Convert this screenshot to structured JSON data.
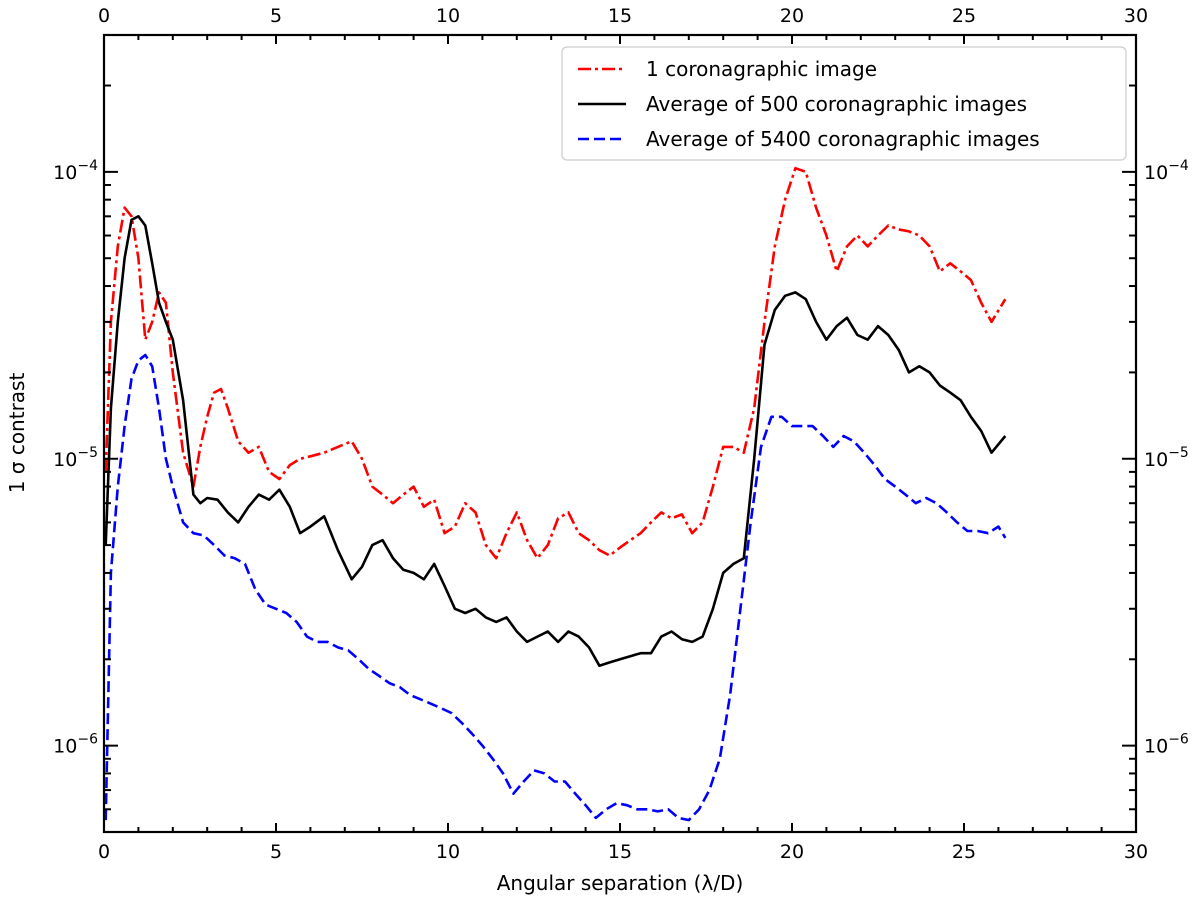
{
  "chart_data": {
    "type": "line",
    "title": "",
    "xlabel": "Angular separation (λ/D)",
    "ylabel": "1 σ contrast",
    "xlim": [
      0,
      30
    ],
    "ylim": [
      5e-07,
      0.0003
    ],
    "yscale": "log",
    "grid": false,
    "legend_position": "top-right",
    "x_ticks": [
      0,
      5,
      10,
      15,
      20,
      25,
      30
    ],
    "x_tick_labels": [
      "0",
      "5",
      "10",
      "15",
      "20",
      "25",
      "30"
    ],
    "y_ticks": [
      1e-06,
      1e-05,
      0.0001
    ],
    "y_tick_labels": [
      {
        "base": "10",
        "exp": "−6"
      },
      {
        "base": "10",
        "exp": "−5"
      },
      {
        "base": "10",
        "exp": "−4"
      }
    ],
    "series": [
      {
        "name": "1 coronagraphic image",
        "color": "#ff0000",
        "dash": "dashdot",
        "x": [
          0.05,
          0.2,
          0.4,
          0.6,
          0.8,
          1.0,
          1.2,
          1.4,
          1.6,
          1.8,
          2.0,
          2.3,
          2.6,
          2.8,
          3.0,
          3.2,
          3.4,
          3.6,
          3.9,
          4.2,
          4.5,
          4.8,
          5.1,
          5.4,
          5.7,
          6.0,
          6.4,
          6.8,
          7.2,
          7.5,
          7.8,
          8.1,
          8.4,
          8.7,
          9.0,
          9.3,
          9.6,
          9.9,
          10.2,
          10.5,
          10.8,
          11.1,
          11.4,
          11.7,
          12.0,
          12.3,
          12.6,
          12.9,
          13.2,
          13.5,
          13.8,
          14.1,
          14.4,
          14.7,
          15.0,
          15.3,
          15.6,
          15.9,
          16.2,
          16.5,
          16.8,
          17.1,
          17.4,
          17.7,
          18.0,
          18.3,
          18.6,
          18.9,
          19.2,
          19.5,
          19.8,
          20.1,
          20.4,
          20.7,
          21.0,
          21.3,
          21.6,
          21.9,
          22.2,
          22.5,
          22.8,
          23.1,
          23.4,
          23.7,
          24.0,
          24.3,
          24.6,
          24.9,
          25.2,
          25.5,
          25.8,
          26.2
        ],
        "y": [
          9e-06,
          3e-05,
          5.5e-05,
          7.5e-05,
          7e-05,
          5e-05,
          2.6e-05,
          3e-05,
          3.8e-05,
          3.5e-05,
          2e-05,
          1.05e-05,
          8e-06,
          1.1e-05,
          1.4e-05,
          1.7e-05,
          1.75e-05,
          1.5e-05,
          1.15e-05,
          1.05e-05,
          1.1e-05,
          9e-06,
          8.5e-06,
          9.5e-06,
          1e-05,
          1.02e-05,
          1.05e-05,
          1.1e-05,
          1.15e-05,
          1e-05,
          8e-06,
          7.5e-06,
          7e-06,
          7.5e-06,
          8e-06,
          6.8e-06,
          7.2e-06,
          5.5e-06,
          5.8e-06,
          7e-06,
          6.5e-06,
          5e-06,
          4.5e-06,
          5.5e-06,
          6.5e-06,
          5.2e-06,
          4.5e-06,
          5e-06,
          6.2e-06,
          6.5e-06,
          5.5e-06,
          5.2e-06,
          4.8e-06,
          4.6e-06,
          4.9e-06,
          5.2e-06,
          5.5e-06,
          6e-06,
          6.5e-06,
          6.2e-06,
          6.4e-06,
          5.5e-06,
          6e-06,
          8e-06,
          1.1e-05,
          1.1e-05,
          1.05e-05,
          1.5e-05,
          3e-05,
          5.5e-05,
          8e-05,
          0.000103,
          0.0001,
          7.5e-05,
          6e-05,
          4.5e-05,
          5.5e-05,
          6e-05,
          5.5e-05,
          6e-05,
          6.5e-05,
          6.3e-05,
          6.2e-05,
          6e-05,
          5.5e-05,
          4.5e-05,
          4.8e-05,
          4.5e-05,
          4.2e-05,
          3.5e-05,
          3e-05,
          3.6e-05
        ]
      },
      {
        "name": "Average of 500 coronagraphic images",
        "color": "#000000",
        "dash": "solid",
        "x": [
          0.05,
          0.2,
          0.4,
          0.6,
          0.8,
          1.0,
          1.2,
          1.4,
          1.6,
          1.8,
          2.0,
          2.3,
          2.6,
          2.8,
          3.0,
          3.3,
          3.6,
          3.9,
          4.2,
          4.5,
          4.8,
          5.1,
          5.4,
          5.7,
          6.0,
          6.4,
          6.8,
          7.2,
          7.5,
          7.8,
          8.1,
          8.4,
          8.7,
          9.0,
          9.3,
          9.6,
          9.9,
          10.2,
          10.5,
          10.8,
          11.1,
          11.4,
          11.7,
          12.0,
          12.3,
          12.6,
          12.9,
          13.2,
          13.5,
          13.8,
          14.1,
          14.4,
          14.7,
          15.0,
          15.3,
          15.6,
          15.9,
          16.2,
          16.5,
          16.8,
          17.1,
          17.4,
          17.7,
          18.0,
          18.3,
          18.6,
          18.9,
          19.2,
          19.5,
          19.8,
          20.1,
          20.4,
          20.7,
          21.0,
          21.3,
          21.6,
          21.9,
          22.2,
          22.5,
          22.8,
          23.1,
          23.4,
          23.7,
          24.0,
          24.3,
          24.6,
          24.9,
          25.2,
          25.5,
          25.8,
          26.2
        ],
        "y": [
          5e-06,
          1.5e-05,
          3e-05,
          5e-05,
          6.8e-05,
          7e-05,
          6.5e-05,
          4.8e-05,
          3.5e-05,
          3e-05,
          2.6e-05,
          1.6e-05,
          7.5e-06,
          7e-06,
          7.3e-06,
          7.2e-06,
          6.5e-06,
          6e-06,
          6.8e-06,
          7.5e-06,
          7.2e-06,
          7.8e-06,
          6.8e-06,
          5.5e-06,
          5.8e-06,
          6.3e-06,
          4.8e-06,
          3.8e-06,
          4.2e-06,
          5e-06,
          5.2e-06,
          4.5e-06,
          4.1e-06,
          4e-06,
          3.8e-06,
          4.3e-06,
          3.6e-06,
          3e-06,
          2.9e-06,
          3e-06,
          2.8e-06,
          2.7e-06,
          2.8e-06,
          2.5e-06,
          2.3e-06,
          2.4e-06,
          2.5e-06,
          2.3e-06,
          2.5e-06,
          2.4e-06,
          2.2e-06,
          1.9e-06,
          1.95e-06,
          2e-06,
          2.05e-06,
          2.1e-06,
          2.1e-06,
          2.4e-06,
          2.5e-06,
          2.35e-06,
          2.3e-06,
          2.4e-06,
          3e-06,
          4e-06,
          4.3e-06,
          4.5e-06,
          1e-05,
          2.5e-05,
          3.3e-05,
          3.7e-05,
          3.8e-05,
          3.6e-05,
          3e-05,
          2.6e-05,
          2.9e-05,
          3.1e-05,
          2.7e-05,
          2.6e-05,
          2.9e-05,
          2.7e-05,
          2.4e-05,
          2e-05,
          2.1e-05,
          2e-05,
          1.8e-05,
          1.7e-05,
          1.6e-05,
          1.4e-05,
          1.25e-05,
          1.05e-05,
          1.2e-05
        ]
      },
      {
        "name": "Average of 5400 coronagraphic images",
        "color": "#0000ff",
        "dash": "dashed",
        "x": [
          0.05,
          0.2,
          0.4,
          0.6,
          0.8,
          1.0,
          1.2,
          1.4,
          1.6,
          1.8,
          2.0,
          2.3,
          2.6,
          2.9,
          3.2,
          3.5,
          3.8,
          4.1,
          4.4,
          4.7,
          5.0,
          5.3,
          5.6,
          5.9,
          6.2,
          6.5,
          6.8,
          7.1,
          7.4,
          7.7,
          8.0,
          8.3,
          8.6,
          8.9,
          9.2,
          9.5,
          9.8,
          10.1,
          10.4,
          10.7,
          11.0,
          11.3,
          11.6,
          11.9,
          12.2,
          12.5,
          12.8,
          13.1,
          13.4,
          13.7,
          14.0,
          14.3,
          14.6,
          14.9,
          15.2,
          15.5,
          15.8,
          16.1,
          16.4,
          16.7,
          17.0,
          17.3,
          17.6,
          17.9,
          18.2,
          18.5,
          18.8,
          19.1,
          19.4,
          19.7,
          20.0,
          20.3,
          20.6,
          20.9,
          21.2,
          21.5,
          21.8,
          22.1,
          22.4,
          22.7,
          23.0,
          23.3,
          23.6,
          23.9,
          24.2,
          24.5,
          24.8,
          25.1,
          25.4,
          25.7,
          26.0,
          26.2
        ],
        "y": [
          5.5e-07,
          4e-06,
          8e-06,
          1.3e-05,
          1.9e-05,
          2.2e-05,
          2.3e-05,
          2.1e-05,
          1.5e-05,
          1e-05,
          8e-06,
          6e-06,
          5.5e-06,
          5.4e-06,
          5e-06,
          4.6e-06,
          4.5e-06,
          4.3e-06,
          3.5e-06,
          3.1e-06,
          3e-06,
          2.9e-06,
          2.7e-06,
          2.4e-06,
          2.3e-06,
          2.3e-06,
          2.2e-06,
          2.15e-06,
          2e-06,
          1.85e-06,
          1.75e-06,
          1.65e-06,
          1.6e-06,
          1.5e-06,
          1.45e-06,
          1.4e-06,
          1.35e-06,
          1.3e-06,
          1.2e-06,
          1.1e-06,
          1e-06,
          9e-07,
          8e-07,
          6.8e-07,
          7.5e-07,
          8.2e-07,
          8e-07,
          7.5e-07,
          7.5e-07,
          6.8e-07,
          6.2e-07,
          5.6e-07,
          6e-07,
          6.3e-07,
          6.2e-07,
          6e-07,
          6e-07,
          5.9e-07,
          6e-07,
          5.6e-07,
          5.5e-07,
          6e-07,
          7e-07,
          9e-07,
          1.5e-06,
          3e-06,
          6e-06,
          1.1e-05,
          1.4e-05,
          1.4e-05,
          1.3e-05,
          1.3e-05,
          1.3e-05,
          1.2e-05,
          1.1e-05,
          1.2e-05,
          1.15e-05,
          1.05e-05,
          9.5e-06,
          8.5e-06,
          8e-06,
          7.5e-06,
          7e-06,
          7.3e-06,
          7e-06,
          6.5e-06,
          6e-06,
          5.6e-06,
          5.6e-06,
          5.5e-06,
          5.8e-06,
          5.3e-06
        ]
      }
    ]
  }
}
